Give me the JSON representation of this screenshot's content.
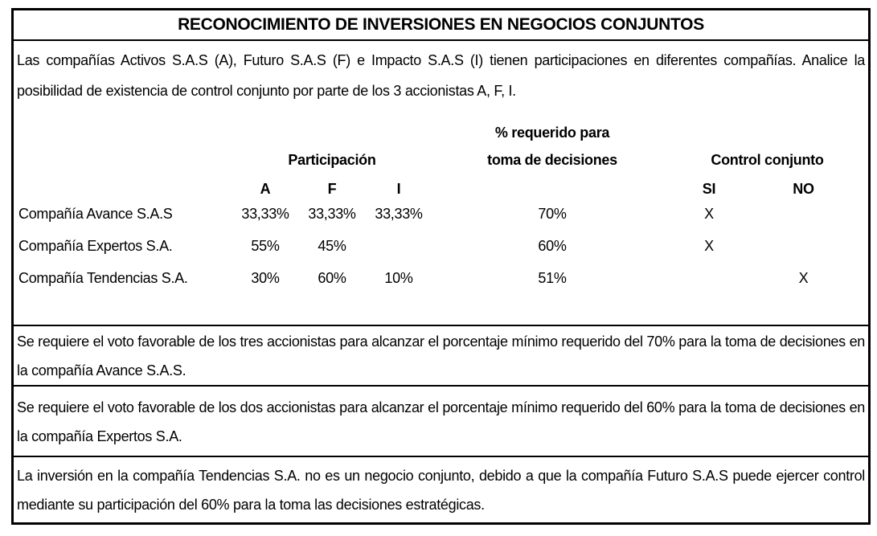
{
  "title": "RECONOCIMIENTO DE INVERSIONES EN NEGOCIOS CONJUNTOS",
  "intro": "Las compañías Activos S.A.S (A), Futuro S.A.S (F) e Impacto S.A.S (I) tienen participaciones en diferentes compañías. Analice la posibilidad de existencia de control conjunto por parte de los 3 accionistas A, F, I.",
  "table": {
    "headers": {
      "participacion": "Participación",
      "requerido_line1": "% requerido para",
      "requerido_line2": "toma de decisiones",
      "control_conjunto": "Control conjunto",
      "col_a": "A",
      "col_f": "F",
      "col_i": "I",
      "col_si": "SI",
      "col_no": "NO"
    },
    "rows": [
      {
        "company": "Compañía Avance S.A.S",
        "a": "33,33%",
        "f": "33,33%",
        "i": "33,33%",
        "requerido": "70%",
        "si": "X",
        "no": ""
      },
      {
        "company": "Compañía Expertos S.A.",
        "a": "55%",
        "f": "45%",
        "i": "",
        "requerido": "60%",
        "si": "X",
        "no": ""
      },
      {
        "company": "Compañía Tendencias S.A.",
        "a": "30%",
        "f": "60%",
        "i": "10%",
        "requerido": "51%",
        "si": "",
        "no": "X"
      }
    ]
  },
  "notes": [
    "Se requiere el voto favorable de los tres accionistas para alcanzar el porcentaje mínimo requerido del 70% para la toma de decisiones en la compañía Avance S.A.S.",
    "Se requiere el voto favorable de los dos accionistas para alcanzar el porcentaje mínimo requerido del 60% para la toma de decisiones en la compañía Expertos S.A.",
    "La inversión en la compañía Tendencias S.A. no es un negocio conjunto, debido a que la compañía Futuro S.A.S puede ejercer control mediante su participación del 60% para la toma las decisiones estratégicas."
  ],
  "colors": {
    "border": "#000000",
    "text": "#000000",
    "background": "#ffffff"
  }
}
